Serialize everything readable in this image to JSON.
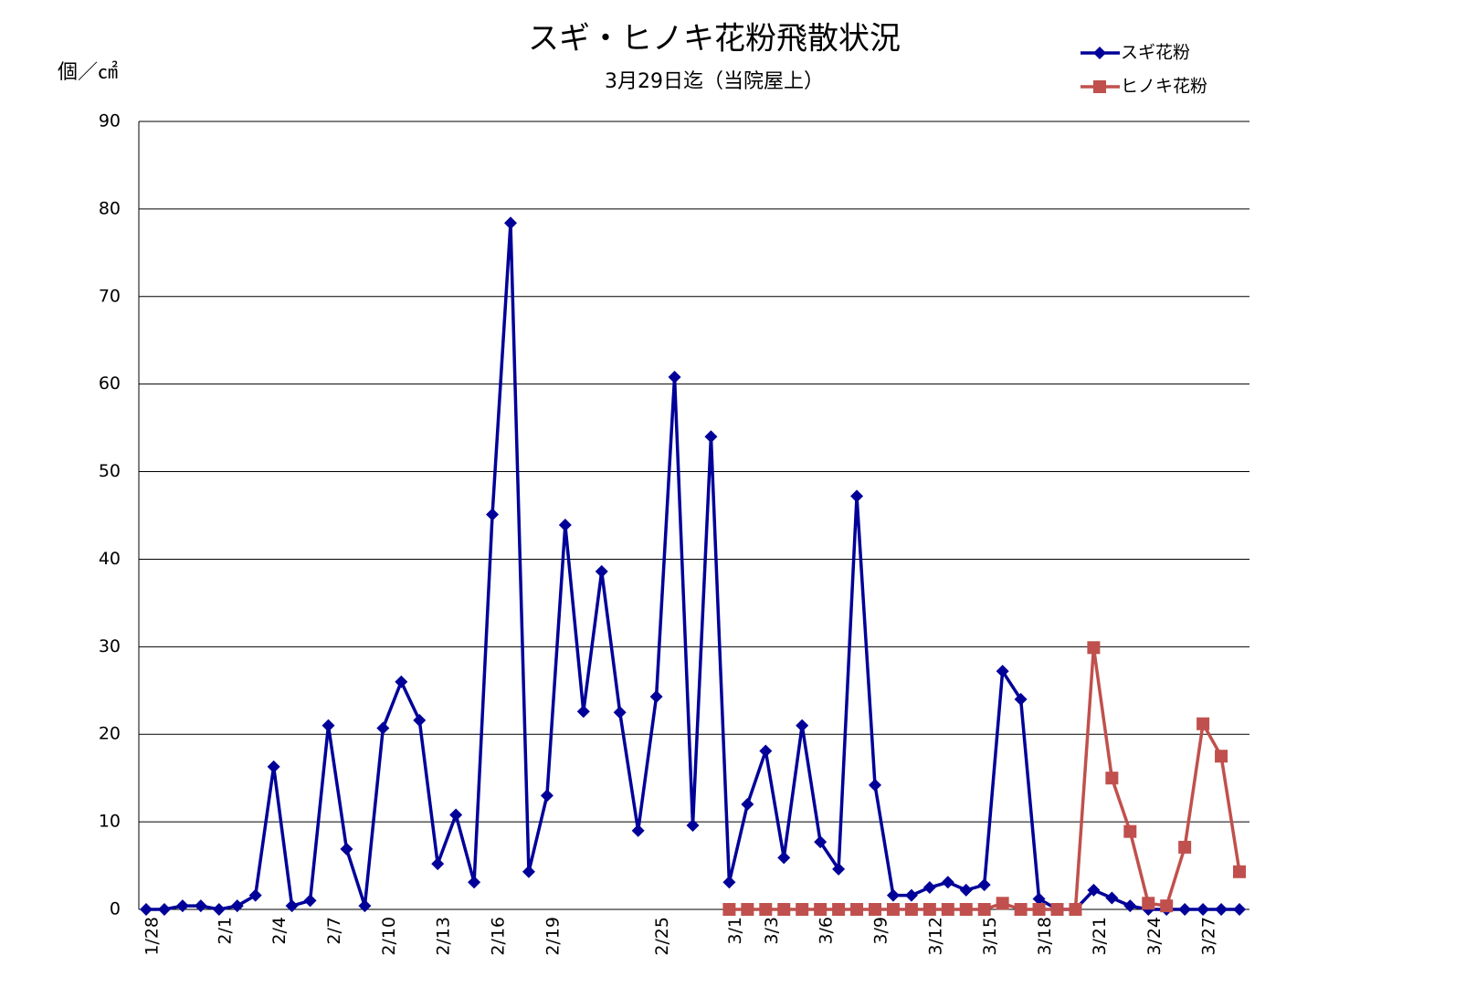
{
  "chart_data": {
    "type": "line",
    "title": "スギ・ヒノキ花粉飛散状況",
    "subtitle": "3月29日迄（当院屋上）",
    "y_label": "個／㎠",
    "categories": [
      "1/28",
      null,
      null,
      null,
      "2/1",
      null,
      null,
      "2/4",
      null,
      null,
      "2/7",
      null,
      null,
      "2/10",
      null,
      null,
      "2/13",
      null,
      null,
      "2/16",
      null,
      null,
      "2/19",
      null,
      null,
      null,
      null,
      null,
      "2/25",
      null,
      null,
      null,
      "3/1",
      null,
      "3/3",
      null,
      null,
      "3/6",
      null,
      null,
      "3/9",
      null,
      null,
      "3/12",
      null,
      null,
      "3/15",
      null,
      null,
      "3/18",
      null,
      null,
      "3/21",
      null,
      null,
      "3/24",
      null,
      null,
      "3/27",
      null,
      null
    ],
    "series": [
      {
        "name": "スギ花粉",
        "color": "#000099",
        "marker": "diamond",
        "values": [
          0,
          0,
          0.4,
          0.4,
          0,
          0.4,
          1.6,
          16.3,
          0.4,
          1,
          21,
          6.9,
          0.4,
          20.7,
          26,
          21.6,
          5.2,
          10.8,
          3.1,
          45.1,
          78.4,
          4.3,
          13,
          43.9,
          22.6,
          38.6,
          22.5,
          9,
          24.3,
          60.8,
          9.6,
          54,
          3.1,
          12,
          18.1,
          5.9,
          21,
          7.7,
          4.6,
          47.2,
          14.2,
          1.6,
          1.6,
          2.5,
          3.1,
          2.2,
          2.8,
          27.2,
          24,
          1.2,
          0,
          0,
          2.2,
          1.3,
          0.4,
          0,
          0,
          0,
          0,
          0,
          0
        ]
      },
      {
        "name": "ヒノキ花粉",
        "color": "#c0504d",
        "marker": "square",
        "values": [
          null,
          null,
          null,
          null,
          null,
          null,
          null,
          null,
          null,
          null,
          null,
          null,
          null,
          null,
          null,
          null,
          null,
          null,
          null,
          null,
          null,
          null,
          null,
          null,
          null,
          null,
          null,
          null,
          null,
          null,
          null,
          null,
          0,
          0,
          0,
          0,
          0,
          0,
          0,
          0,
          0,
          0,
          0,
          0,
          0,
          0,
          0,
          0.7,
          0,
          0,
          0,
          0,
          29.9,
          15,
          8.9,
          0.7,
          0.4,
          7.1,
          21.2,
          17.5,
          4.3
        ]
      }
    ],
    "ylim": [
      0,
      90
    ],
    "yticks": [
      0,
      10,
      20,
      30,
      40,
      50,
      60,
      70,
      80,
      90
    ],
    "grid": true,
    "legend": "top-right"
  }
}
